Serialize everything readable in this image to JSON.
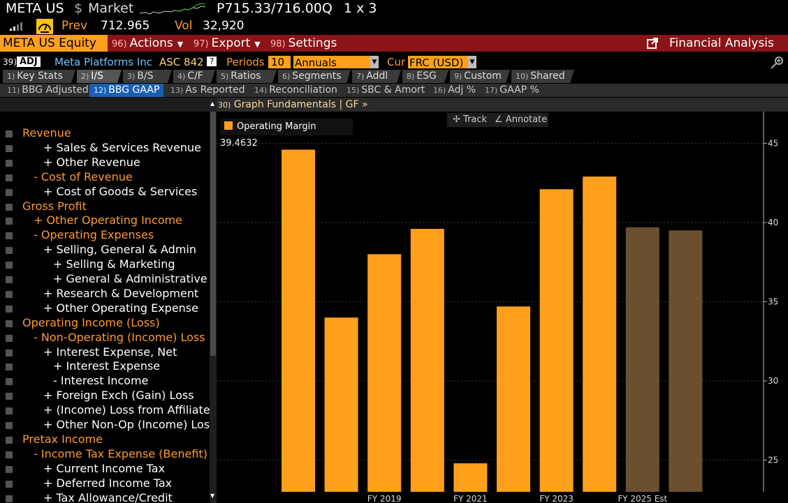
{
  "top": {
    "ticker": "META US",
    "dollar": "$",
    "mode": "Market",
    "bid": "P715.33",
    "ask": "/716.00Q",
    "size": "1 x 3",
    "prev_label": "Prev",
    "prev_value": "712.965",
    "vol_label": "Vol",
    "vol_value": "32,920"
  },
  "toolbar": {
    "security": "META US Equity",
    "actions_num": "96)",
    "actions": "Actions",
    "export_num": "97)",
    "export": "Export",
    "settings_num": "98)",
    "settings": "Settings",
    "app_title": "Financial Analysis"
  },
  "header": {
    "num": "39)",
    "adj": "ADJ",
    "company": "Meta Platforms Inc",
    "standard": "ASC 842",
    "help": "?",
    "periods_label": "Periods",
    "periods_value": "10",
    "frequency": "Annuals",
    "cur_label": "Cur",
    "currency": "FRC (USD)"
  },
  "tabs": [
    {
      "n": "1)",
      "label": "Key Stats"
    },
    {
      "n": "2)",
      "label": "I/S"
    },
    {
      "n": "3)",
      "label": "B/S"
    },
    {
      "n": "4)",
      "label": "C/F"
    },
    {
      "n": "5)",
      "label": "Ratios"
    },
    {
      "n": "6)",
      "label": "Segments"
    },
    {
      "n": "7)",
      "label": "Addl"
    },
    {
      "n": "8)",
      "label": "ESG"
    },
    {
      "n": "9)",
      "label": "Custom"
    },
    {
      "n": "10)",
      "label": "Shared"
    }
  ],
  "subtabs": [
    {
      "n": "11)",
      "label": "BBG Adjusted"
    },
    {
      "n": "12)",
      "label": "BBG GAAP"
    },
    {
      "n": "13)",
      "label": "As Reported"
    },
    {
      "n": "14)",
      "label": "Reconciliation"
    },
    {
      "n": "15)",
      "label": "SBC & Amort"
    },
    {
      "n": "16)",
      "label": "Adj %"
    },
    {
      "n": "17)",
      "label": "GAAP %"
    }
  ],
  "items": [
    {
      "label": "Revenue"
    },
    {
      "label": "+ Sales & Services Revenue"
    },
    {
      "label": "+ Other Revenue"
    },
    {
      "label": "- Cost of Revenue"
    },
    {
      "label": "+ Cost of Goods & Services"
    },
    {
      "label": "Gross Profit"
    },
    {
      "label": "+ Other Operating Income"
    },
    {
      "label": "- Operating Expenses"
    },
    {
      "label": "+ Selling, General & Admin"
    },
    {
      "label": "+ Selling & Marketing"
    },
    {
      "label": "+ General & Administrative"
    },
    {
      "label": "+ Research & Development"
    },
    {
      "label": "+ Other Operating Expense"
    },
    {
      "label": "Operating Income (Loss)"
    },
    {
      "label": "- Non-Operating (Income) Loss"
    },
    {
      "label": "+ Interest Expense, Net"
    },
    {
      "label": "+ Interest Expense"
    },
    {
      "label": "- Interest Income"
    },
    {
      "label": "+ Foreign Exch (Gain) Loss"
    },
    {
      "label": "+ (Income) Loss from Affiliates"
    },
    {
      "label": "+ Other Non-Op (Income) Loss"
    },
    {
      "label": "Pretax Income"
    },
    {
      "label": "- Income Tax Expense (Benefit)"
    },
    {
      "label": "+ Current Income Tax"
    },
    {
      "label": "+ Deferred Income Tax"
    },
    {
      "label": "+ Tax Allowance/Credit"
    }
  ],
  "graph": {
    "title_num": "30)",
    "title": "Graph Fundamentals | GF »",
    "track": "Track",
    "annotate": "Annotate",
    "legend": "Operating Margin 39.4632"
  },
  "colors": {
    "actual": "#ffa01c",
    "estimate": "#6b5030",
    "orange_text": "#ff9a2e",
    "red_toolbar": "#8a1417"
  },
  "chart_data": {
    "type": "bar",
    "categories": [
      "FY 2017",
      "FY 2018",
      "FY 2019",
      "FY 2020",
      "FY 2021",
      "FY 2022",
      "FY 2023",
      "FY 2024",
      "FY 2025 Est",
      "FY 2026 Est"
    ],
    "x_tick_labels": [
      "FY 2019",
      "FY 2021",
      "FY 2023",
      "FY 2025 Est"
    ],
    "series": [
      {
        "name": "Operating Margin",
        "values": [
          44.6,
          34.0,
          38.0,
          39.6,
          24.8,
          34.7,
          42.1,
          42.9,
          39.7,
          39.5
        ]
      }
    ],
    "estimate_flags": [
      false,
      false,
      false,
      false,
      false,
      false,
      false,
      false,
      true,
      true
    ],
    "yticks": [
      25,
      30,
      35,
      40,
      45
    ],
    "ylim": [
      23.0,
      47.0
    ],
    "legend_placement": "top-left"
  }
}
